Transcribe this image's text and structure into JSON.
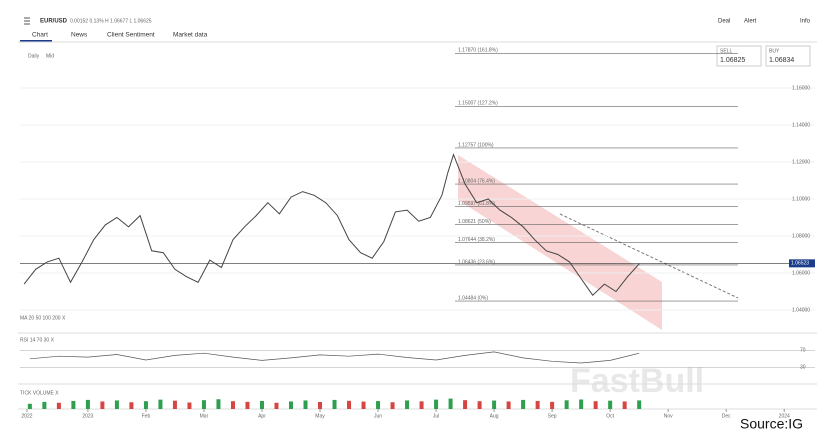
{
  "header": {
    "symbol": "EUR/USD",
    "quote": "0.00152  0.13%  H 1.06677  L 1.06625",
    "menu": [
      "Deal",
      "Alert",
      "Info"
    ]
  },
  "tabs": [
    "Chart",
    "News",
    "Client Sentiment",
    "Market data"
  ],
  "sell": {
    "label": "SELL",
    "price": "1.06825"
  },
  "buy": {
    "label": "BUY",
    "price": "1.06834"
  },
  "watermark": "FastBull",
  "source": "Source:IG",
  "chart_data": {
    "type": "line",
    "toolbar": [
      "Daily",
      "Mid"
    ],
    "legend_text": "MA  20  50  100  200  X",
    "color": "#444444",
    "x": [
      -1.1,
      -0.9,
      -0.7,
      -0.5,
      -0.3,
      -0.1,
      0.1,
      0.3,
      0.5,
      0.7,
      0.9,
      1.1,
      1.3,
      1.5,
      1.7,
      1.9,
      2.1,
      2.3,
      2.5,
      2.7,
      2.9,
      3.1,
      3.3,
      3.5,
      3.7,
      3.9,
      4.1,
      4.3,
      4.5,
      4.7,
      4.9,
      5.1,
      5.3,
      5.5,
      5.7,
      5.9,
      6.1,
      6.2,
      6.3,
      6.5,
      6.7,
      6.9,
      7.1,
      7.3,
      7.5,
      7.7,
      7.9,
      8.1,
      8.3,
      8.5,
      8.7,
      8.9,
      9.1,
      9.3,
      9.5
    ],
    "values": [
      1.054,
      1.062,
      1.066,
      1.068,
      1.055,
      1.066,
      1.078,
      1.086,
      1.09,
      1.085,
      1.091,
      1.072,
      1.071,
      1.062,
      1.058,
      1.055,
      1.067,
      1.063,
      1.078,
      1.085,
      1.091,
      1.098,
      1.092,
      1.101,
      1.104,
      1.102,
      1.098,
      1.091,
      1.078,
      1.071,
      1.068,
      1.077,
      1.093,
      1.094,
      1.088,
      1.09,
      1.102,
      1.114,
      1.124,
      1.108,
      1.098,
      1.1,
      1.094,
      1.09,
      1.085,
      1.078,
      1.072,
      1.07,
      1.066,
      1.057,
      1.048,
      1.054,
      1.05,
      1.058,
      1.065
    ],
    "xlim": [
      -1.17,
      12.53
    ],
    "xticks": [
      {
        "value": -1.05,
        "label": "2022"
      },
      {
        "value": 0,
        "label": "2023"
      },
      {
        "value": 1,
        "label": "Feb"
      },
      {
        "value": 2,
        "label": "Mar"
      },
      {
        "value": 3,
        "label": "Apr"
      },
      {
        "value": 4,
        "label": "May"
      },
      {
        "value": 5,
        "label": "Jun"
      },
      {
        "value": 6,
        "label": "Jul"
      },
      {
        "value": 7,
        "label": "Aug"
      },
      {
        "value": 8,
        "label": "Sep"
      },
      {
        "value": 9,
        "label": "Oct"
      },
      {
        "value": 10,
        "label": "Nov"
      },
      {
        "value": 11,
        "label": "Dec"
      },
      {
        "value": 12,
        "label": "2024"
      }
    ],
    "ylim": [
      1.0357,
      1.1832
    ],
    "yticks": [
      {
        "value": 1.16,
        "label": "1.16000"
      },
      {
        "value": 1.14,
        "label": "1.14000"
      },
      {
        "value": 1.12,
        "label": "1.12000"
      },
      {
        "value": 1.1,
        "label": "1.10000"
      },
      {
        "value": 1.08,
        "label": "1.08000"
      },
      {
        "value": 1.06,
        "label": "1.06000"
      },
      {
        "value": 1.04,
        "label": "1.04000"
      }
    ],
    "last_price": {
      "value": 1.06523,
      "label": "1.06523"
    },
    "fib": [
      {
        "value": 1.1787,
        "label": "1.17870 (161.8%)"
      },
      {
        "value": 1.15007,
        "label": "1.15007 (127.2%)"
      },
      {
        "value": 1.12757,
        "label": "1.12757 (100%)"
      },
      {
        "value": 1.10804,
        "label": "1.10804 (76.4%)"
      },
      {
        "value": 1.09597,
        "label": "1.09597 (61.8%)"
      },
      {
        "value": 1.08621,
        "label": "1.08621 (50%)"
      },
      {
        "value": 1.07644,
        "label": "1.07644 (38.2%)"
      },
      {
        "value": 1.06436,
        "label": "1.06436 (23.6%)"
      },
      {
        "value": 1.04484,
        "label": "1.04484 (0%)"
      }
    ],
    "rsi": {
      "title": "RSI  14  70  30  X",
      "color": "#555555",
      "x": [
        -1,
        -0.5,
        0,
        0.5,
        1,
        1.5,
        2,
        2.5,
        3,
        3.5,
        4,
        4.5,
        5,
        5.5,
        6,
        6.5,
        7,
        7.5,
        8,
        8.5,
        9,
        9.5
      ],
      "values": [
        50,
        56,
        54,
        60,
        47,
        58,
        63,
        54,
        46,
        52,
        59,
        56,
        61,
        53,
        47,
        58,
        66,
        52,
        44,
        40,
        46,
        63
      ],
      "ylim": [
        0,
        100
      ],
      "yticks": [
        70,
        30
      ]
    },
    "volume": {
      "title": "TICK VOLUME  X",
      "up_color": "#2e9e4f",
      "down_color": "#d64541",
      "x": [
        -1,
        -0.75,
        -0.5,
        -0.25,
        0,
        0.25,
        0.5,
        0.75,
        1,
        1.25,
        1.5,
        1.75,
        2,
        2.25,
        2.5,
        2.75,
        3,
        3.25,
        3.5,
        3.75,
        4,
        4.25,
        4.5,
        4.75,
        5,
        5.25,
        5.5,
        5.75,
        6,
        6.25,
        6.5,
        6.75,
        7,
        7.25,
        7.5,
        7.75,
        8,
        8.25,
        8.5,
        8.75,
        9,
        9.25,
        9.5
      ],
      "values": [
        40,
        55,
        48,
        62,
        70,
        58,
        66,
        52,
        60,
        72,
        64,
        50,
        68,
        75,
        60,
        55,
        62,
        48,
        58,
        66,
        54,
        70,
        63,
        57,
        61,
        52,
        66,
        59,
        72,
        80,
        68,
        60,
        65,
        58,
        70,
        62,
        55,
        67,
        73,
        60,
        64,
        58,
        66
      ],
      "ylim": [
        0,
        100
      ]
    }
  }
}
